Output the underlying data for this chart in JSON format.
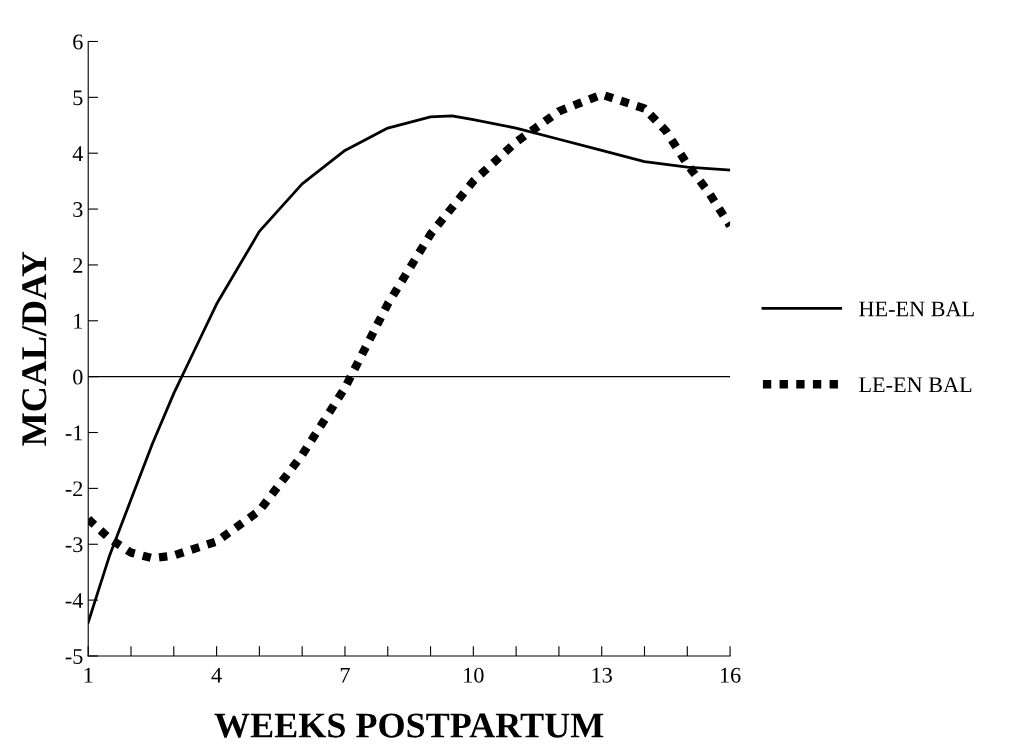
{
  "chart_data": {
    "type": "line",
    "xlabel": "WEEKS POSTPARTUM",
    "ylabel": "MCAL/DAY",
    "series": [
      {
        "name": "HE-EN BAL",
        "color": "#000000",
        "line_style": "solid",
        "x": [
          1,
          1.5,
          2,
          2.5,
          3,
          3.5,
          4,
          5,
          6,
          7,
          8,
          9,
          9.5,
          10,
          11,
          12,
          13,
          14,
          15,
          16
        ],
        "values": [
          -4.4,
          -3.2,
          -2.2,
          -1.2,
          -0.3,
          0.5,
          1.3,
          2.6,
          3.45,
          4.05,
          4.45,
          4.65,
          4.67,
          4.6,
          4.45,
          4.25,
          4.05,
          3.85,
          3.75,
          3.7
        ]
      },
      {
        "name": "LE-EN BAL",
        "color": "#000000",
        "line_style": "dotted",
        "x": [
          1,
          1.5,
          2,
          2.5,
          3,
          4,
          5,
          6,
          7,
          8,
          9,
          10,
          11,
          12,
          13,
          14,
          14.5,
          15,
          15.5,
          16
        ],
        "values": [
          -2.55,
          -2.9,
          -3.15,
          -3.25,
          -3.2,
          -2.95,
          -2.4,
          -1.4,
          -0.2,
          1.3,
          2.55,
          3.5,
          4.2,
          4.75,
          5.05,
          4.8,
          4.4,
          3.8,
          3.3,
          2.7
        ]
      }
    ],
    "xlim": [
      1,
      16
    ],
    "xticks": [
      1,
      {
        "value": 2,
        "label": null
      },
      {
        "value": 3,
        "label": null
      },
      4,
      {
        "value": 5,
        "label": null
      },
      {
        "value": 6,
        "label": null
      },
      7,
      {
        "value": 8,
        "label": null
      },
      {
        "value": 9,
        "label": null
      },
      10,
      {
        "value": 11,
        "label": null
      },
      {
        "value": 12,
        "label": null
      },
      13,
      {
        "value": 14,
        "label": null
      },
      {
        "value": 15,
        "label": null
      },
      16
    ],
    "ylim": [
      -5,
      6
    ],
    "yticks": [
      -5,
      -4,
      -3,
      -2,
      -1,
      0,
      1,
      2,
      3,
      4,
      5,
      6
    ],
    "ref_lines": [
      {
        "axis": "y",
        "value": 0,
        "label": null,
        "color": "#000000",
        "line_style": "solid"
      }
    ],
    "grid": false,
    "legend": "right",
    "marker": "none"
  }
}
